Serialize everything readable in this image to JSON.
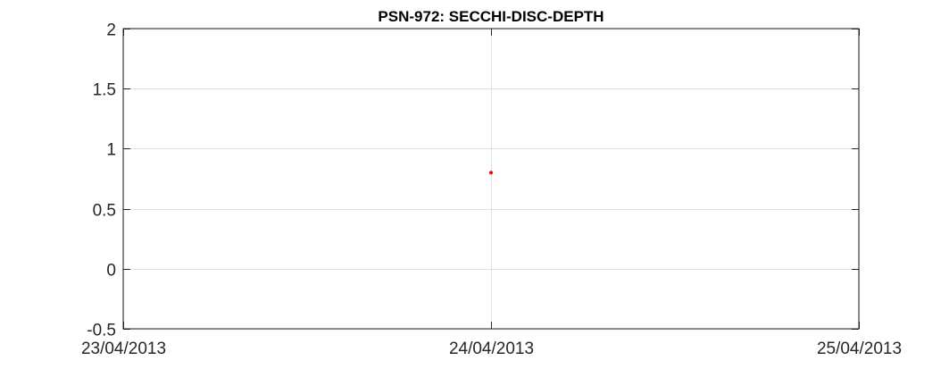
{
  "chart_data": {
    "type": "scatter",
    "title": "PSN-972: SECCHI-DISC-DEPTH",
    "xlabel": "",
    "ylabel": "",
    "xlim": [
      "23/04/2013",
      "25/04/2013"
    ],
    "ylim": [
      -0.5,
      2
    ],
    "x_ticks": [
      "23/04/2013",
      "24/04/2013",
      "25/04/2013"
    ],
    "y_ticks": [
      "-0.5",
      "0",
      "0.5",
      "1",
      "1.5",
      "2"
    ],
    "grid": true,
    "legend": "none",
    "series": [
      {
        "color": "#ff0000",
        "marker": "dot",
        "points": [
          {
            "x": "24/04/2013",
            "y": 0.8
          }
        ]
      }
    ]
  }
}
